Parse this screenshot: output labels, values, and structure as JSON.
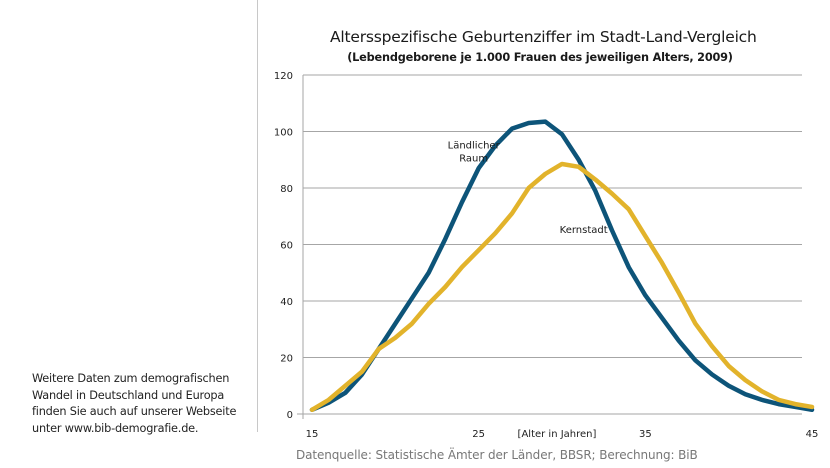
{
  "side_note": {
    "lines": [
      "Weitere Daten zum demografischen",
      "Wandel in Deutschland und Europa",
      "finden Sie auch auf unserer Webseite",
      "unter www.bib-demografie.de."
    ]
  },
  "source": "Datenquelle: Statistische Ämter der Länder, BBSR; Berechnung: BiB",
  "chart_data": {
    "type": "line",
    "title": "Altersspezifische Geburtenziffer im Stadt-Land-Vergleich",
    "subtitle": "(Lebendgeborene je 1.000 Frauen des jeweiligen Alters, 2009)",
    "xlabel": "[Alter in Jahren]",
    "ylabel": "",
    "xlim": [
      15,
      45
    ],
    "ylim": [
      0,
      120
    ],
    "x_ticks": [
      "15",
      "25",
      "35",
      "45"
    ],
    "x_tick_values": [
      15,
      25,
      35,
      45
    ],
    "y_ticks": [
      "0",
      "20",
      "40",
      "60",
      "80",
      "100",
      "120"
    ],
    "y_tick_values": [
      0,
      20,
      40,
      60,
      80,
      100,
      120
    ],
    "grid": true,
    "x": [
      15,
      16,
      17,
      18,
      19,
      20,
      21,
      22,
      23,
      24,
      25,
      26,
      27,
      28,
      29,
      30,
      31,
      32,
      33,
      34,
      35,
      36,
      37,
      38,
      39,
      40,
      41,
      42,
      43,
      44,
      45
    ],
    "series": [
      {
        "name": "Ländlicher Raum",
        "label_lines": [
          "Ländlicher",
          "Raum"
        ],
        "color": "#0d5479",
        "values": [
          1.5,
          4,
          7.5,
          14,
          23,
          32,
          41,
          50,
          62,
          75,
          87,
          95,
          101,
          103,
          103.5,
          99,
          90,
          79,
          65,
          52,
          42,
          34,
          26,
          19,
          14,
          10,
          7,
          5,
          3.5,
          2.5,
          1.5
        ]
      },
      {
        "name": "Kernstadt",
        "label_lines": [
          "Kernstadt"
        ],
        "color": "#e2b32b",
        "values": [
          1.5,
          5,
          10,
          15,
          23,
          27,
          32,
          39,
          45,
          52,
          58,
          64,
          71,
          80,
          85,
          88.5,
          87.5,
          83,
          78,
          72.5,
          63,
          53.5,
          43,
          32,
          24,
          17,
          12,
          8,
          5,
          3.5,
          2.5
        ]
      }
    ]
  }
}
